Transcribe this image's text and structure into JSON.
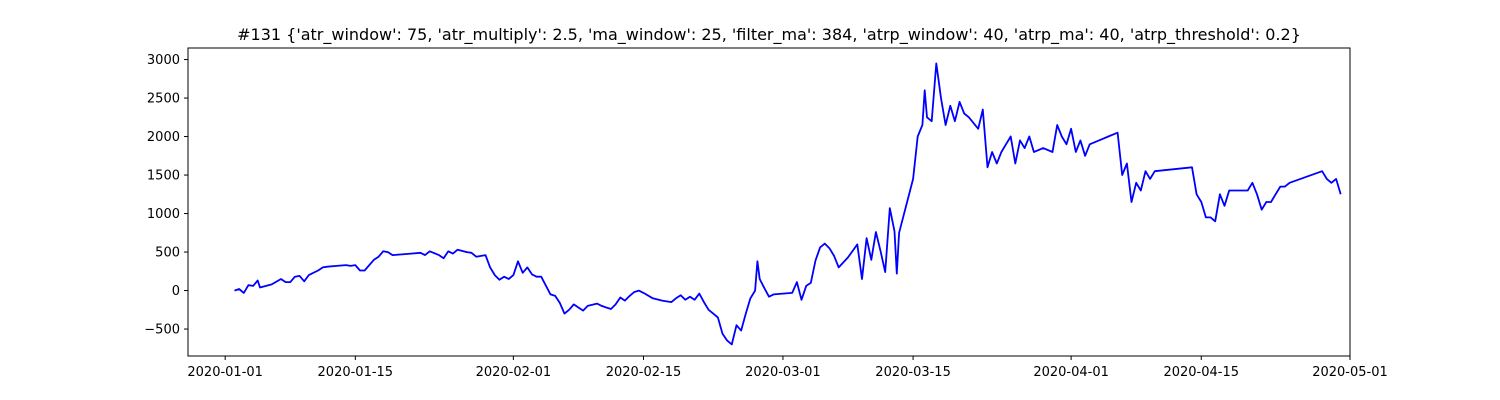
{
  "chart_data": {
    "type": "line",
    "title": "#131 {'atr_window': 75, 'atr_multiply': 2.5, 'ma_window': 25, 'filter_ma': 384, 'atrp_window': 40, 'atrp_ma': 40, 'atrp_threshold': 0.2}",
    "xlabel": "",
    "ylabel": "",
    "xlim": [
      "2019-12-28",
      "2020-05-01"
    ],
    "ylim": [
      -850,
      3150
    ],
    "x_ticks": [
      "2020-01-01",
      "2020-01-15",
      "2020-02-01",
      "2020-02-15",
      "2020-03-01",
      "2020-03-15",
      "2020-04-01",
      "2020-04-15",
      "2020-05-01"
    ],
    "y_ticks": [
      -500,
      0,
      500,
      1000,
      1500,
      2000,
      2500,
      3000
    ],
    "grid": false,
    "legend": "none",
    "series": [
      {
        "color": "#0000ff",
        "points": [
          [
            "2020-01-02",
            0
          ],
          [
            "2020-01-02T12:00",
            20
          ],
          [
            "2020-01-03",
            -30
          ],
          [
            "2020-01-03T12:00",
            70
          ],
          [
            "2020-01-04",
            60
          ],
          [
            "2020-01-04T12:00",
            130
          ],
          [
            "2020-01-04T18:00",
            40
          ],
          [
            "2020-01-06",
            80
          ],
          [
            "2020-01-07",
            150
          ],
          [
            "2020-01-07T12:00",
            110
          ],
          [
            "2020-01-08",
            110
          ],
          [
            "2020-01-08T12:00",
            180
          ],
          [
            "2020-01-09",
            190
          ],
          [
            "2020-01-09T12:00",
            120
          ],
          [
            "2020-01-10",
            200
          ],
          [
            "2020-01-11",
            260
          ],
          [
            "2020-01-11T12:00",
            300
          ],
          [
            "2020-01-12",
            310
          ],
          [
            "2020-01-13",
            320
          ],
          [
            "2020-01-14",
            330
          ],
          [
            "2020-01-14T12:00",
            320
          ],
          [
            "2020-01-15",
            330
          ],
          [
            "2020-01-15T12:00",
            260
          ],
          [
            "2020-01-16",
            260
          ],
          [
            "2020-01-17",
            400
          ],
          [
            "2020-01-17T12:00",
            440
          ],
          [
            "2020-01-18",
            510
          ],
          [
            "2020-01-18T12:00",
            500
          ],
          [
            "2020-01-19",
            460
          ],
          [
            "2020-01-20",
            470
          ],
          [
            "2020-01-21",
            480
          ],
          [
            "2020-01-22",
            490
          ],
          [
            "2020-01-22T12:00",
            460
          ],
          [
            "2020-01-23",
            510
          ],
          [
            "2020-01-24",
            460
          ],
          [
            "2020-01-24T12:00",
            420
          ],
          [
            "2020-01-25",
            510
          ],
          [
            "2020-01-25T12:00",
            480
          ],
          [
            "2020-01-26",
            530
          ],
          [
            "2020-01-27",
            500
          ],
          [
            "2020-01-27T12:00",
            490
          ],
          [
            "2020-01-28",
            440
          ],
          [
            "2020-01-29",
            460
          ],
          [
            "2020-01-29T12:00",
            300
          ],
          [
            "2020-01-30",
            200
          ],
          [
            "2020-01-30T12:00",
            140
          ],
          [
            "2020-01-31",
            180
          ],
          [
            "2020-01-31T12:00",
            150
          ],
          [
            "2020-02-01",
            200
          ],
          [
            "2020-02-01T12:00",
            380
          ],
          [
            "2020-02-02",
            230
          ],
          [
            "2020-02-02T12:00",
            300
          ],
          [
            "2020-02-03",
            210
          ],
          [
            "2020-02-03T12:00",
            180
          ],
          [
            "2020-02-04",
            180
          ],
          [
            "2020-02-05",
            -50
          ],
          [
            "2020-02-05T12:00",
            -70
          ],
          [
            "2020-02-06",
            -160
          ],
          [
            "2020-02-06T12:00",
            -300
          ],
          [
            "2020-02-07",
            -250
          ],
          [
            "2020-02-07T12:00",
            -180
          ],
          [
            "2020-02-08",
            -220
          ],
          [
            "2020-02-08T12:00",
            -260
          ],
          [
            "2020-02-09",
            -200
          ],
          [
            "2020-02-10",
            -170
          ],
          [
            "2020-02-10T12:00",
            -200
          ],
          [
            "2020-02-11",
            -220
          ],
          [
            "2020-02-11T12:00",
            -240
          ],
          [
            "2020-02-12",
            -180
          ],
          [
            "2020-02-12T12:00",
            -90
          ],
          [
            "2020-02-13",
            -130
          ],
          [
            "2020-02-13T12:00",
            -70
          ],
          [
            "2020-02-14",
            -20
          ],
          [
            "2020-02-14T12:00",
            0
          ],
          [
            "2020-02-15",
            -30
          ],
          [
            "2020-02-16",
            -100
          ],
          [
            "2020-02-17",
            -130
          ],
          [
            "2020-02-18",
            -150
          ],
          [
            "2020-02-18T12:00",
            -100
          ],
          [
            "2020-02-19",
            -60
          ],
          [
            "2020-02-19T12:00",
            -120
          ],
          [
            "2020-02-20",
            -80
          ],
          [
            "2020-02-20T12:00",
            -120
          ],
          [
            "2020-02-21",
            -40
          ],
          [
            "2020-02-21T12:00",
            -150
          ],
          [
            "2020-02-22",
            -250
          ],
          [
            "2020-02-22T12:00",
            -300
          ],
          [
            "2020-02-23",
            -350
          ],
          [
            "2020-02-23T12:00",
            -560
          ],
          [
            "2020-02-24",
            -650
          ],
          [
            "2020-02-24T12:00",
            -700
          ],
          [
            "2020-02-25",
            -450
          ],
          [
            "2020-02-25T12:00",
            -520
          ],
          [
            "2020-02-26",
            -300
          ],
          [
            "2020-02-26T12:00",
            -100
          ],
          [
            "2020-02-27",
            0
          ],
          [
            "2020-02-27T06:00",
            380
          ],
          [
            "2020-02-27T12:00",
            150
          ],
          [
            "2020-02-28",
            30
          ],
          [
            "2020-02-28T12:00",
            -80
          ],
          [
            "2020-02-29",
            -50
          ],
          [
            "2020-03-01",
            -40
          ],
          [
            "2020-03-02",
            -30
          ],
          [
            "2020-03-02T12:00",
            110
          ],
          [
            "2020-03-03",
            -120
          ],
          [
            "2020-03-03T12:00",
            60
          ],
          [
            "2020-03-04",
            100
          ],
          [
            "2020-03-04T12:00",
            390
          ],
          [
            "2020-03-05",
            560
          ],
          [
            "2020-03-05T12:00",
            610
          ],
          [
            "2020-03-06",
            550
          ],
          [
            "2020-03-06T12:00",
            450
          ],
          [
            "2020-03-07",
            300
          ],
          [
            "2020-03-08",
            430
          ],
          [
            "2020-03-09",
            600
          ],
          [
            "2020-03-09T12:00",
            150
          ],
          [
            "2020-03-10",
            680
          ],
          [
            "2020-03-10T12:00",
            400
          ],
          [
            "2020-03-11",
            760
          ],
          [
            "2020-03-11T12:00",
            510
          ],
          [
            "2020-03-12",
            240
          ],
          [
            "2020-03-12T12:00",
            1070
          ],
          [
            "2020-03-13",
            770
          ],
          [
            "2020-03-13T06:00",
            220
          ],
          [
            "2020-03-13T12:00",
            750
          ],
          [
            "2020-03-15",
            1450
          ],
          [
            "2020-03-15T12:00",
            2000
          ],
          [
            "2020-03-16",
            2150
          ],
          [
            "2020-03-16T06:00",
            2600
          ],
          [
            "2020-03-16T12:00",
            2250
          ],
          [
            "2020-03-17",
            2200
          ],
          [
            "2020-03-17T12:00",
            2950
          ],
          [
            "2020-03-18",
            2500
          ],
          [
            "2020-03-18T12:00",
            2150
          ],
          [
            "2020-03-19",
            2400
          ],
          [
            "2020-03-19T12:00",
            2200
          ],
          [
            "2020-03-20",
            2450
          ],
          [
            "2020-03-20T12:00",
            2300
          ],
          [
            "2020-03-21",
            2250
          ],
          [
            "2020-03-22",
            2100
          ],
          [
            "2020-03-22T12:00",
            2350
          ],
          [
            "2020-03-23",
            1600
          ],
          [
            "2020-03-23T12:00",
            1800
          ],
          [
            "2020-03-24",
            1650
          ],
          [
            "2020-03-24T12:00",
            1800
          ],
          [
            "2020-03-25",
            1900
          ],
          [
            "2020-03-25T12:00",
            2000
          ],
          [
            "2020-03-26",
            1650
          ],
          [
            "2020-03-26T12:00",
            1950
          ],
          [
            "2020-03-27",
            1850
          ],
          [
            "2020-03-27T12:00",
            2000
          ],
          [
            "2020-03-28",
            1800
          ],
          [
            "2020-03-29",
            1850
          ],
          [
            "2020-03-30",
            1800
          ],
          [
            "2020-03-30T12:00",
            2150
          ],
          [
            "2020-03-31",
            2000
          ],
          [
            "2020-03-31T12:00",
            1900
          ],
          [
            "2020-04-01",
            2100
          ],
          [
            "2020-04-01T12:00",
            1800
          ],
          [
            "2020-04-02",
            1950
          ],
          [
            "2020-04-02T12:00",
            1750
          ],
          [
            "2020-04-03",
            1900
          ],
          [
            "2020-04-04",
            1950
          ],
          [
            "2020-04-05",
            2000
          ],
          [
            "2020-04-06",
            2050
          ],
          [
            "2020-04-06T12:00",
            1500
          ],
          [
            "2020-04-07",
            1650
          ],
          [
            "2020-04-07T12:00",
            1150
          ],
          [
            "2020-04-08",
            1400
          ],
          [
            "2020-04-08T12:00",
            1300
          ],
          [
            "2020-04-09",
            1550
          ],
          [
            "2020-04-09T12:00",
            1450
          ],
          [
            "2020-04-10",
            1550
          ],
          [
            "2020-04-14",
            1600
          ],
          [
            "2020-04-14T12:00",
            1250
          ],
          [
            "2020-04-15",
            1150
          ],
          [
            "2020-04-15T12:00",
            950
          ],
          [
            "2020-04-16",
            950
          ],
          [
            "2020-04-16T12:00",
            900
          ],
          [
            "2020-04-17",
            1250
          ],
          [
            "2020-04-17T12:00",
            1100
          ],
          [
            "2020-04-18",
            1300
          ],
          [
            "2020-04-20",
            1300
          ],
          [
            "2020-04-20T12:00",
            1400
          ],
          [
            "2020-04-21",
            1250
          ],
          [
            "2020-04-21T12:00",
            1050
          ],
          [
            "2020-04-22",
            1150
          ],
          [
            "2020-04-22T12:00",
            1150
          ],
          [
            "2020-04-23",
            1250
          ],
          [
            "2020-04-23T12:00",
            1350
          ],
          [
            "2020-04-24",
            1350
          ],
          [
            "2020-04-24T12:00",
            1400
          ],
          [
            "2020-04-28",
            1550
          ],
          [
            "2020-04-28T12:00",
            1450
          ],
          [
            "2020-04-29",
            1400
          ],
          [
            "2020-04-29T12:00",
            1450
          ],
          [
            "2020-04-30",
            1250
          ]
        ]
      }
    ]
  }
}
